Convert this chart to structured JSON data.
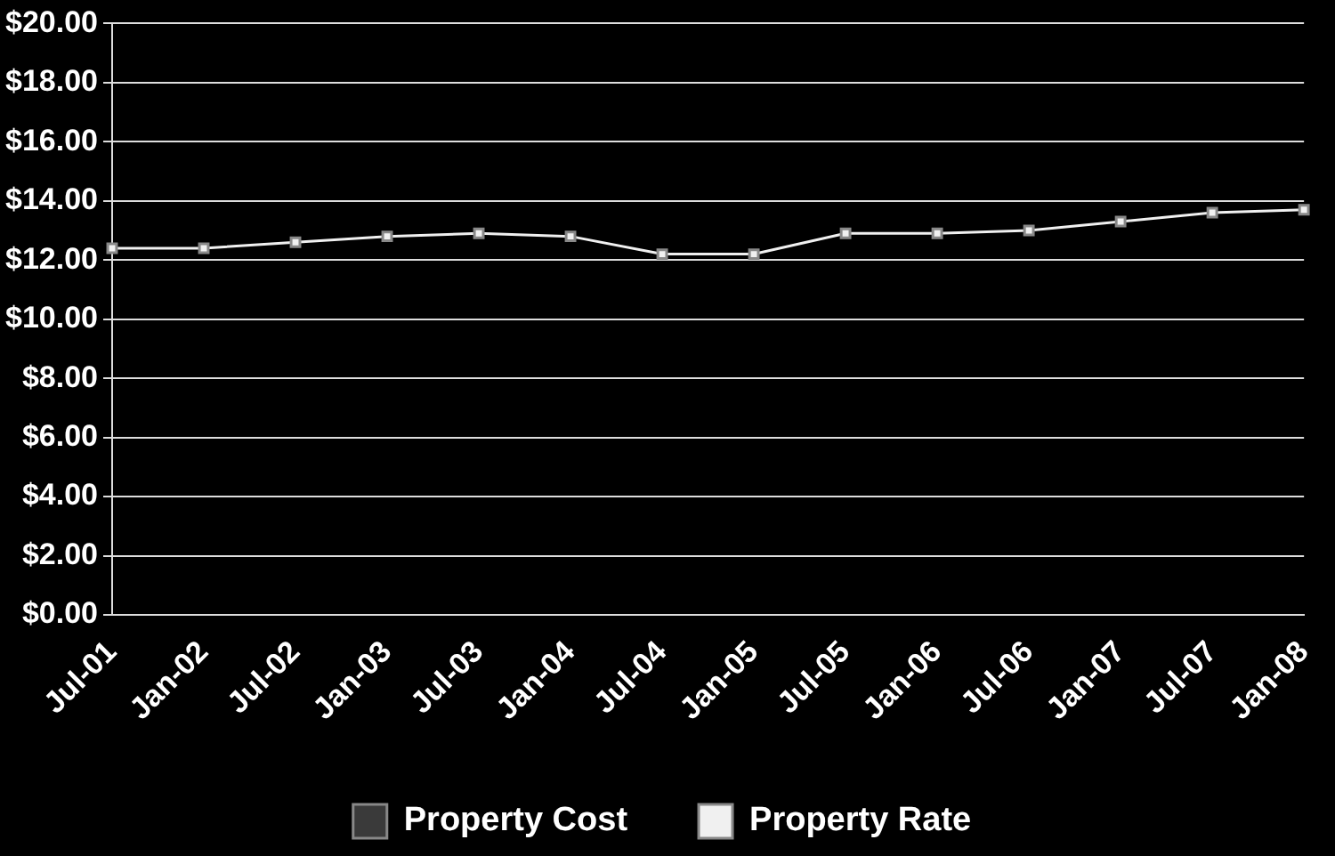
{
  "chart_data": {
    "type": "line",
    "categories": [
      "Jul-01",
      "Jan-02",
      "Jul-02",
      "Jan-03",
      "Jul-03",
      "Jan-04",
      "Jul-04",
      "Jan-05",
      "Jul-05",
      "Jan-06",
      "Jul-06",
      "Jan-07",
      "Jul-07",
      "Jan-08"
    ],
    "series": [
      {
        "name": "Property Cost",
        "color": "#3a3a3a",
        "values": [
          null,
          null,
          null,
          null,
          null,
          null,
          null,
          null,
          null,
          null,
          null,
          null,
          null,
          null
        ]
      },
      {
        "name": "Property Rate",
        "color": "#f0f0f0",
        "values": [
          12.4,
          12.4,
          12.6,
          12.8,
          12.9,
          12.8,
          12.2,
          12.2,
          12.9,
          12.9,
          13.0,
          13.3,
          13.6,
          13.7
        ]
      }
    ],
    "ylim": [
      0,
      20
    ],
    "yticks": [
      {
        "value": 0,
        "label": "$0.00"
      },
      {
        "value": 2,
        "label": "$2.00"
      },
      {
        "value": 4,
        "label": "$4.00"
      },
      {
        "value": 6,
        "label": "$6.00"
      },
      {
        "value": 8,
        "label": "$8.00"
      },
      {
        "value": 10,
        "label": "$10.00"
      },
      {
        "value": 12,
        "label": "$12.00"
      },
      {
        "value": 14,
        "label": "$14.00"
      },
      {
        "value": 16,
        "label": "$16.00"
      },
      {
        "value": 18,
        "label": "$18.00"
      },
      {
        "value": 20,
        "label": "$20.00"
      }
    ],
    "grid": "y",
    "legend": "bottom",
    "marker": "square",
    "line_style": "solid"
  }
}
